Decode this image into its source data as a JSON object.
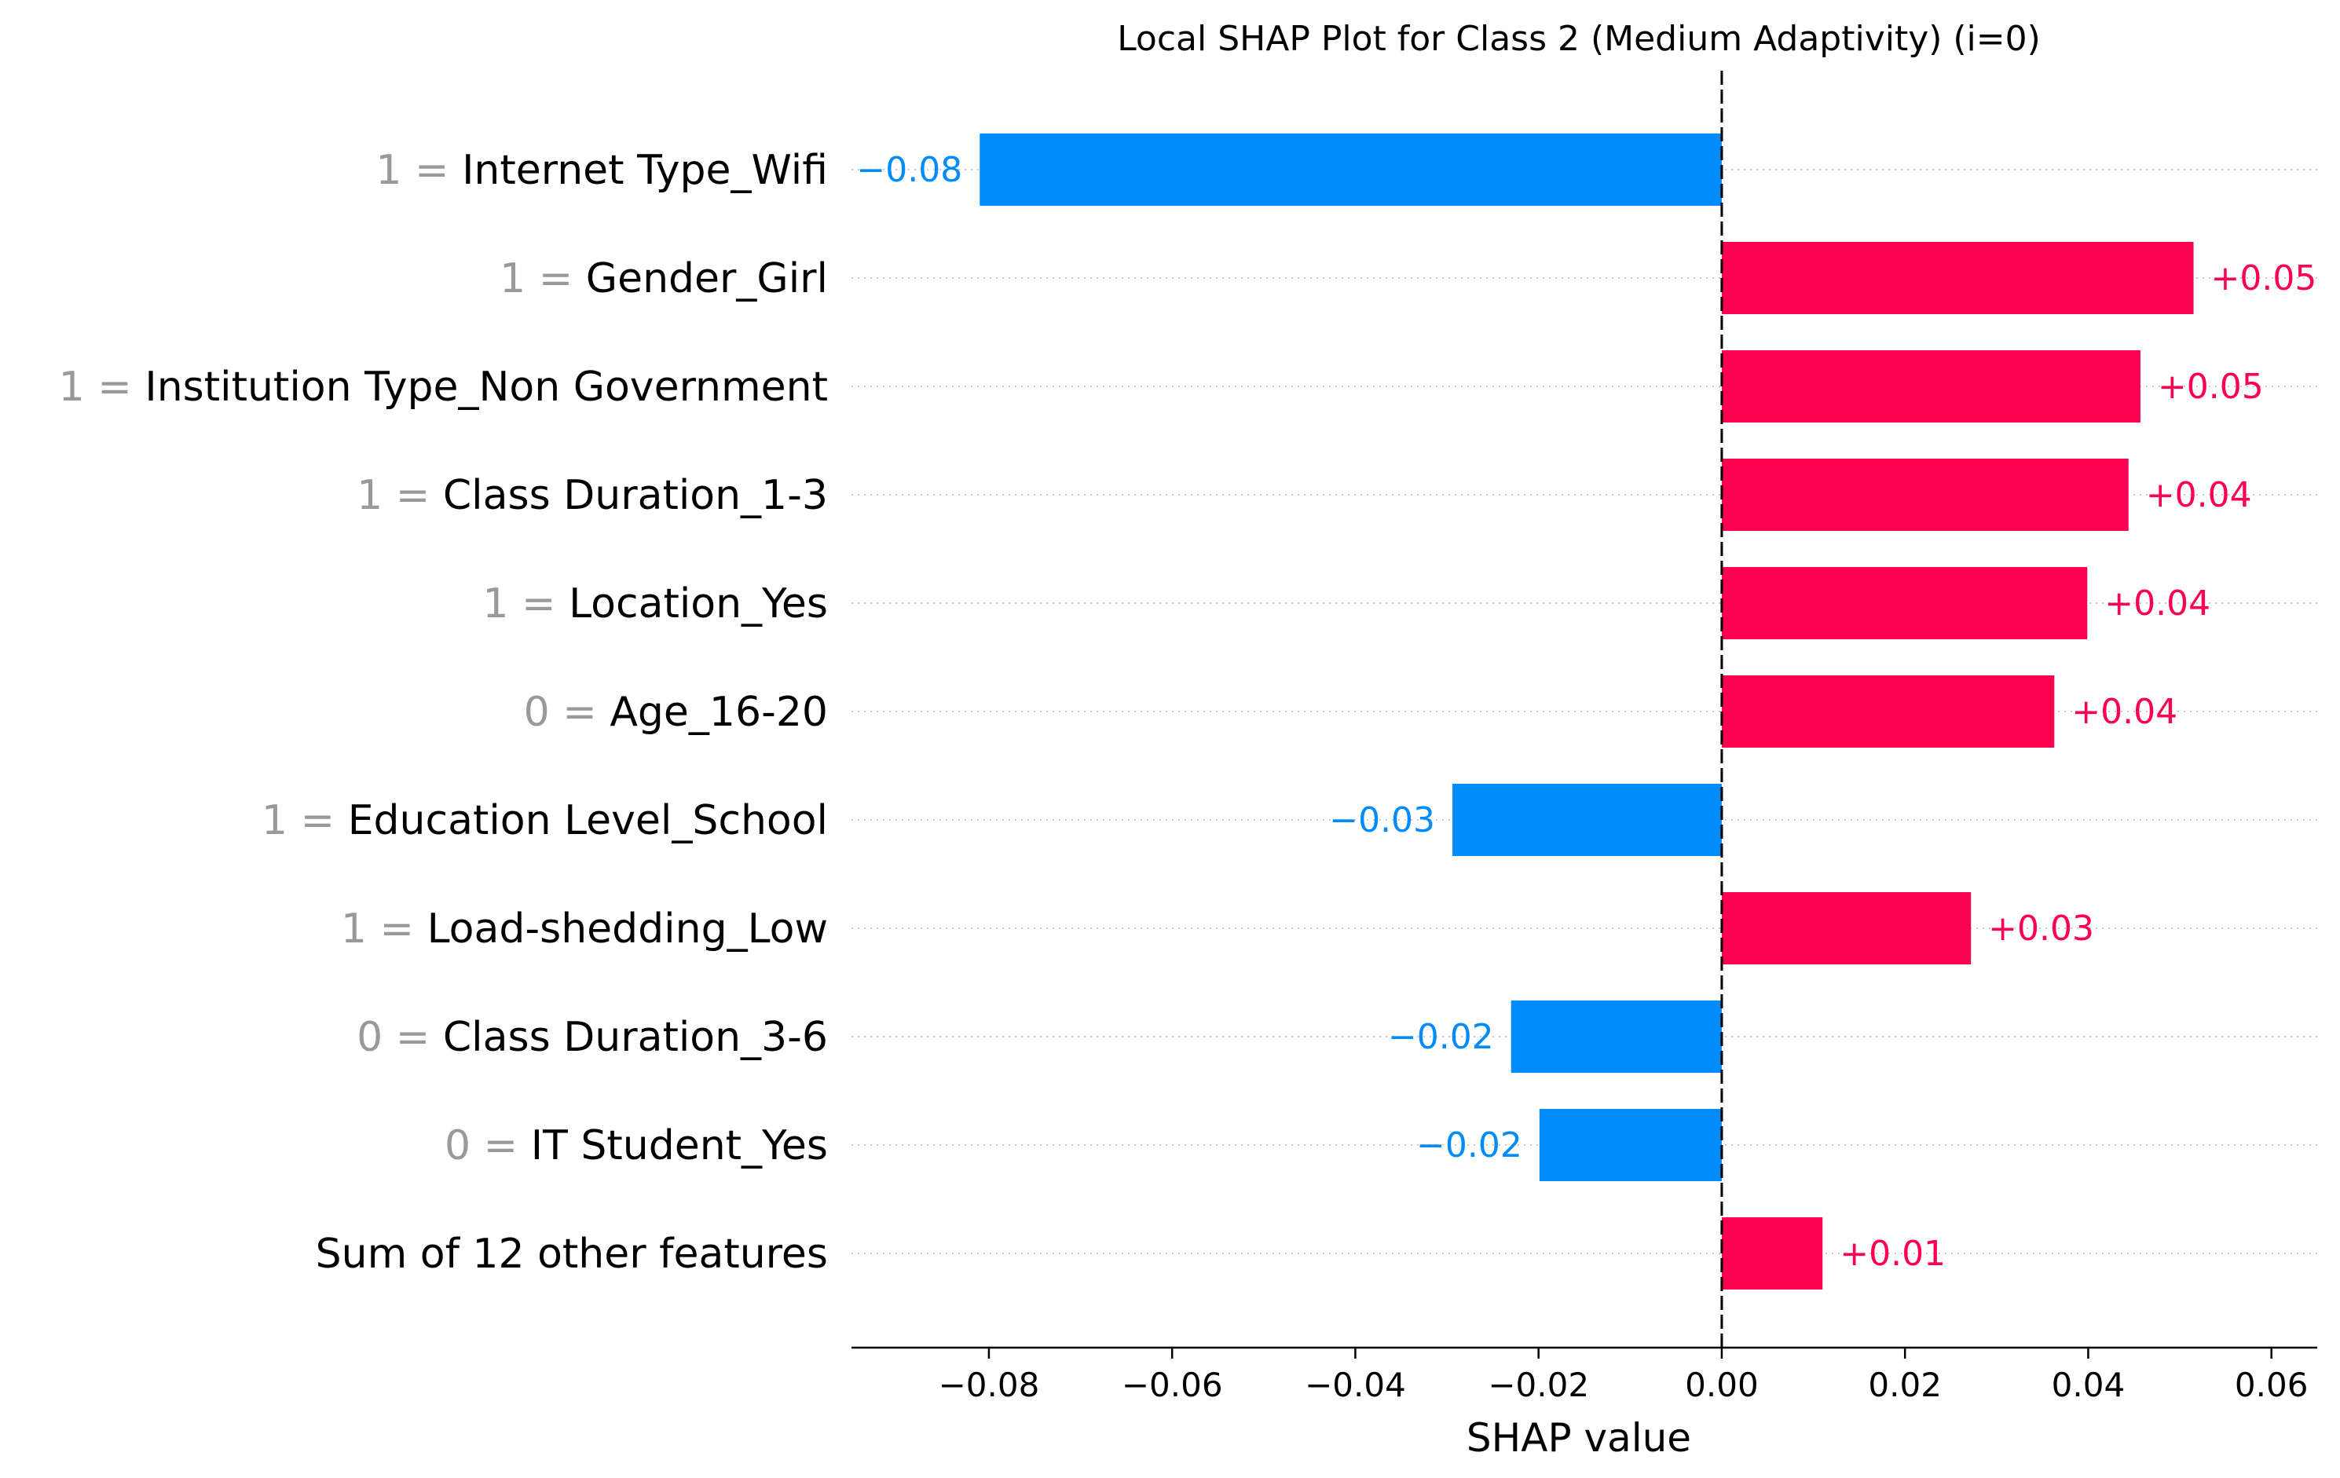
{
  "chart_data": {
    "type": "bar",
    "orientation": "horizontal",
    "title": "Local SHAP Plot for Class 2 (Medium Adaptivity) (i=0)",
    "xlabel": "SHAP value",
    "xlim": [
      -0.095,
      0.065
    ],
    "xticks": [
      -0.08,
      -0.06,
      -0.04,
      -0.02,
      0.0,
      0.02,
      0.04,
      0.06
    ],
    "xtick_labels": [
      "−0.08",
      "−0.06",
      "−0.04",
      "−0.02",
      "0.00",
      "0.02",
      "0.04",
      "0.06"
    ],
    "grid": "dotted horizontal lines per feature",
    "colors": {
      "positive": "#ff0051",
      "negative": "#008bfb",
      "feature_value": "#999999",
      "text": "#000000"
    },
    "features": [
      {
        "value_label": "1 =",
        "name": "Internet Type_Wifi",
        "shap": -0.081,
        "label": "−0.08"
      },
      {
        "value_label": "1 =",
        "name": "Gender_Girl",
        "shap": 0.0515,
        "label": "+0.05"
      },
      {
        "value_label": "1 =",
        "name": "Institution Type_Non Government",
        "shap": 0.0457,
        "label": "+0.05"
      },
      {
        "value_label": "1 =",
        "name": "Class Duration_1-3",
        "shap": 0.0444,
        "label": "+0.04"
      },
      {
        "value_label": "1 =",
        "name": "Location_Yes",
        "shap": 0.0399,
        "label": "+0.04"
      },
      {
        "value_label": "0 =",
        "name": "Age_16-20",
        "shap": 0.0363,
        "label": "+0.04"
      },
      {
        "value_label": "1 =",
        "name": "Education Level_School",
        "shap": -0.0294,
        "label": "−0.03"
      },
      {
        "value_label": "1 =",
        "name": "Load-shedding_Low",
        "shap": 0.0272,
        "label": "+0.03"
      },
      {
        "value_label": "0 =",
        "name": "Class Duration_3-6",
        "shap": -0.023,
        "label": "−0.02"
      },
      {
        "value_label": "0 =",
        "name": "IT Student_Yes",
        "shap": -0.0199,
        "label": "−0.02"
      },
      {
        "value_label": "",
        "name": "Sum of 12 other features",
        "shap": 0.011,
        "label": "+0.01"
      }
    ]
  }
}
